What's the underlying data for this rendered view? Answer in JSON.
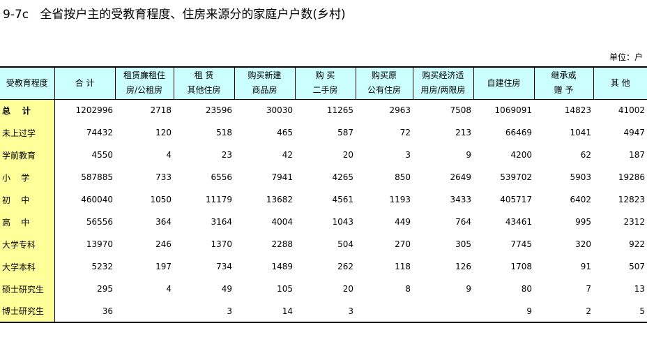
{
  "title": "9-7c   全省按户主的受教育程度、住房来源分的家庭户户数(乡村)",
  "unit": "单位：户",
  "columns": [
    "受教育程度",
    "合    计",
    "租赁廉租住\n房/公租房",
    "租     赁\n其他住房",
    "购买新建\n商品房",
    "购    买\n二手房",
    "购买原\n公有住房",
    "购买经济适\n用房/两限房",
    "自建住房",
    "继承或\n赠    予",
    "其    他"
  ],
  "rows": [
    {
      "label": "总    计",
      "bold": true,
      "values": [
        "1202996",
        "2718",
        "23596",
        "30030",
        "11265",
        "2963",
        "7508",
        "1069091",
        "14823",
        "41002"
      ]
    },
    {
      "label": "未上过学",
      "values": [
        "74432",
        "120",
        "518",
        "465",
        "587",
        "72",
        "213",
        "66469",
        "1041",
        "4947"
      ]
    },
    {
      "label": "学前教育",
      "values": [
        "4550",
        "4",
        "23",
        "42",
        "20",
        "3",
        "9",
        "4200",
        "62",
        "187"
      ]
    },
    {
      "label": "小    学",
      "values": [
        "587885",
        "733",
        "6556",
        "7941",
        "4265",
        "850",
        "2649",
        "539702",
        "5903",
        "19286"
      ]
    },
    {
      "label": "初    中",
      "values": [
        "460040",
        "1050",
        "11179",
        "13682",
        "4561",
        "1193",
        "3433",
        "405717",
        "6402",
        "12823"
      ]
    },
    {
      "label": "高    中",
      "values": [
        "56556",
        "364",
        "3164",
        "4004",
        "1043",
        "449",
        "764",
        "43461",
        "995",
        "2312"
      ]
    },
    {
      "label": "大学专科",
      "values": [
        "13970",
        "246",
        "1370",
        "2288",
        "504",
        "270",
        "305",
        "7745",
        "320",
        "922"
      ]
    },
    {
      "label": "大学本科",
      "values": [
        "5232",
        "197",
        "734",
        "1489",
        "262",
        "118",
        "126",
        "1708",
        "91",
        "507"
      ]
    },
    {
      "label": "硕士研究生",
      "values": [
        "295",
        "4",
        "49",
        "105",
        "20",
        "8",
        "9",
        "80",
        "7",
        "13"
      ]
    },
    {
      "label": "博士研究生",
      "values": [
        "36",
        "",
        "3",
        "14",
        "3",
        "",
        "",
        "9",
        "2",
        "5"
      ]
    }
  ]
}
